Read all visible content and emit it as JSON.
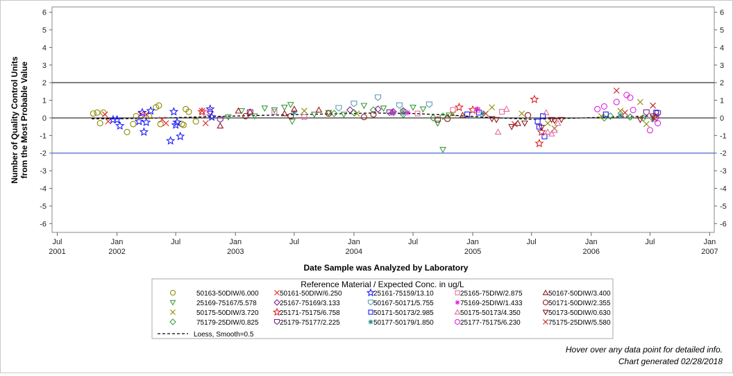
{
  "chart_data": {
    "type": "scatter",
    "ylabel_line1": "Number of Quality Control Units",
    "ylabel_line2": "from the Most Probable Value",
    "xlabel": "Date Sample was Analyzed by Laboratory",
    "ylim": [
      -6.5,
      6.3
    ],
    "yticks": [
      6,
      5,
      4,
      3,
      2,
      1,
      0,
      -1,
      -2,
      -3,
      -4,
      -5,
      -6
    ],
    "xlim": [
      "2001-06-15",
      "2007-01-15"
    ],
    "xticks": [
      {
        "date": "2001-07-01",
        "line1": "Jul",
        "line2": "2001"
      },
      {
        "date": "2002-01-01",
        "line1": "Jan",
        "line2": "2002"
      },
      {
        "date": "2002-07-01",
        "line1": "Jul",
        "line2": ""
      },
      {
        "date": "2003-01-01",
        "line1": "Jan",
        "line2": "2003"
      },
      {
        "date": "2003-07-01",
        "line1": "Jul",
        "line2": ""
      },
      {
        "date": "2004-01-01",
        "line1": "Jan",
        "line2": "2004"
      },
      {
        "date": "2004-07-01",
        "line1": "Jul",
        "line2": ""
      },
      {
        "date": "2005-01-01",
        "line1": "Jan",
        "line2": "2005"
      },
      {
        "date": "2005-07-01",
        "line1": "Jul",
        "line2": ""
      },
      {
        "date": "2006-01-01",
        "line1": "Jan",
        "line2": "2006"
      },
      {
        "date": "2006-07-01",
        "line1": "Jul",
        "line2": ""
      },
      {
        "date": "2007-01-01",
        "line1": "Jan",
        "line2": "2007"
      }
    ],
    "reference_lines": [
      {
        "y": 2,
        "color": "#000000"
      },
      {
        "y": 0,
        "color": "#000000"
      },
      {
        "y": -2,
        "color": "#2040c0"
      }
    ],
    "legend_title": "Reference Material / Expected Conc. in ug/L",
    "loess_label": "Loess, Smooth=0.5",
    "loess": [
      {
        "x": "2001-10-15",
        "y": -0.05
      },
      {
        "x": "2002-01-01",
        "y": -0.05
      },
      {
        "x": "2002-06-01",
        "y": 0.0
      },
      {
        "x": "2002-11-01",
        "y": 0.08
      },
      {
        "x": "2003-04-01",
        "y": 0.15
      },
      {
        "x": "2003-10-01",
        "y": 0.22
      },
      {
        "x": "2004-03-01",
        "y": 0.28
      },
      {
        "x": "2004-07-01",
        "y": 0.25
      },
      {
        "x": "2004-11-01",
        "y": 0.15
      },
      {
        "x": "2005-03-01",
        "y": 0.02
      },
      {
        "x": "2005-07-01",
        "y": -0.08
      },
      {
        "x": "2005-11-01",
        "y": -0.02
      },
      {
        "x": "2006-03-01",
        "y": 0.05
      },
      {
        "x": "2006-08-01",
        "y": 0.12
      }
    ],
    "series": [
      {
        "name": "50163-50DIW/6.000",
        "color": "#8b8b00",
        "marker": "circle",
        "points": [
          [
            "2001-10-20",
            0.25
          ],
          [
            "2001-11-01",
            0.3
          ],
          [
            "2001-11-10",
            -0.3
          ],
          [
            "2001-11-20",
            0.3
          ],
          [
            "2002-02-01",
            -0.8
          ],
          [
            "2002-02-20",
            -0.35
          ],
          [
            "2002-03-01",
            0.1
          ],
          [
            "2002-04-10",
            0.1
          ],
          [
            "2002-05-01",
            0.6
          ],
          [
            "2002-05-10",
            0.7
          ],
          [
            "2002-05-15",
            -0.35
          ],
          [
            "2002-07-20",
            -0.35
          ],
          [
            "2002-07-25",
            -0.4
          ],
          [
            "2002-08-01",
            0.5
          ],
          [
            "2002-08-10",
            0.35
          ],
          [
            "2002-09-01",
            -0.2
          ]
        ]
      },
      {
        "name": "25169-75167/5.578",
        "color": "#3a9a3a",
        "marker": "tri-down",
        "points": [
          [
            "2002-12-10",
            0.05
          ],
          [
            "2003-01-20",
            0.4
          ],
          [
            "2003-03-01",
            0.1
          ],
          [
            "2003-04-01",
            0.55
          ],
          [
            "2003-05-01",
            0.45
          ],
          [
            "2003-06-01",
            0.6
          ],
          [
            "2003-06-20",
            0.75
          ],
          [
            "2003-06-25",
            -0.2
          ],
          [
            "2003-09-01",
            0.2
          ],
          [
            "2003-10-15",
            0.3
          ],
          [
            "2003-12-01",
            0.2
          ],
          [
            "2004-02-01",
            0.7
          ],
          [
            "2004-04-01",
            0.55
          ],
          [
            "2004-07-01",
            0.6
          ],
          [
            "2004-08-01",
            0.5
          ],
          [
            "2004-09-15",
            -0.3
          ],
          [
            "2004-10-01",
            -1.8
          ],
          [
            "2004-10-20",
            0.15
          ]
        ]
      },
      {
        "name": "50175-50DIW/3.720",
        "color": "#8b8b00",
        "marker": "x",
        "points": [
          [
            "2003-08-01",
            0.4
          ],
          [
            "2004-01-10",
            0.25
          ],
          [
            "2004-06-01",
            0.35
          ],
          [
            "2004-11-01",
            0.25
          ],
          [
            "2005-03-01",
            0.6
          ],
          [
            "2005-06-01",
            0.25
          ],
          [
            "2005-08-20",
            -0.3
          ],
          [
            "2005-09-10",
            -0.6
          ],
          [
            "2006-02-01",
            0.1
          ],
          [
            "2006-04-01",
            0.4
          ],
          [
            "2006-06-01",
            0.9
          ],
          [
            "2006-06-20",
            -0.35
          ],
          [
            "2006-07-20",
            0.15
          ]
        ]
      },
      {
        "name": "75179-25DIW/0.825",
        "color": "#3a9a3a",
        "marker": "diamond",
        "points": [
          [
            "2003-11-01",
            0.25
          ],
          [
            "2004-01-01",
            0.3
          ],
          [
            "2004-03-01",
            0.45
          ],
          [
            "2004-06-01",
            0.2
          ],
          [
            "2004-09-01",
            0.0
          ],
          [
            "2004-10-01",
            0.1
          ],
          [
            "2006-02-10",
            0.0
          ],
          [
            "2006-03-01",
            0.1
          ],
          [
            "2006-05-01",
            0.05
          ],
          [
            "2006-06-10",
            0.0
          ]
        ]
      },
      {
        "name": "50161-50DIW/6.250",
        "color": "#e02020",
        "marker": "x",
        "points": [
          [
            "2001-11-25",
            0.2
          ],
          [
            "2001-12-05",
            -0.2
          ],
          [
            "2002-03-15",
            0.2
          ],
          [
            "2002-04-01",
            0.2
          ],
          [
            "2002-05-20",
            -0.1
          ],
          [
            "2002-06-01",
            -0.3
          ],
          [
            "2002-09-20",
            0.4
          ],
          [
            "2002-10-01",
            -0.3
          ]
        ]
      },
      {
        "name": "25167-75169/3.133",
        "color": "#7a1f8a",
        "marker": "diamond",
        "points": [
          [
            "2002-10-15",
            0.35
          ],
          [
            "2003-12-20",
            0.45
          ],
          [
            "2004-03-15",
            0.5
          ],
          [
            "2004-05-01",
            0.35
          ],
          [
            "2004-06-01",
            0.4
          ]
        ]
      },
      {
        "name": "25171-75175/6.758",
        "color": "#e02020",
        "marker": "star",
        "points": [
          [
            "2002-09-20",
            0.35
          ],
          [
            "2004-11-20",
            0.6
          ],
          [
            "2005-01-01",
            0.45
          ],
          [
            "2005-07-10",
            1.05
          ],
          [
            "2005-07-25",
            -1.45
          ],
          [
            "2005-08-01",
            -0.8
          ]
        ]
      },
      {
        "name": "25179-75177/2.225",
        "color": "#7a1f8a",
        "marker": "shield",
        "points": [
          [
            "2002-11-15",
            -0.1
          ],
          [
            "2003-02-15",
            0.3
          ],
          [
            "2004-04-20",
            0.3
          ],
          [
            "2006-06-20",
            0.3
          ],
          [
            "2006-07-25",
            0.25
          ]
        ]
      },
      {
        "name": "25161-75159/13.10",
        "color": "#1a1aff",
        "marker": "star",
        "points": [
          [
            "2001-12-20",
            -0.1
          ],
          [
            "2002-01-01",
            -0.1
          ],
          [
            "2002-01-10",
            -0.45
          ],
          [
            "2002-03-10",
            -0.2
          ],
          [
            "2002-03-20",
            0.3
          ],
          [
            "2002-03-25",
            -0.8
          ],
          [
            "2002-04-01",
            -0.25
          ],
          [
            "2002-04-15",
            0.4
          ],
          [
            "2002-06-15",
            -1.3
          ],
          [
            "2002-06-25",
            0.35
          ],
          [
            "2002-07-01",
            -0.4
          ],
          [
            "2002-07-05",
            -0.25
          ],
          [
            "2002-07-15",
            -1.05
          ],
          [
            "2002-10-15",
            0.5
          ],
          [
            "2002-10-20",
            0.05
          ]
        ]
      },
      {
        "name": "50167-50171/5.755",
        "color": "#5a9ab8",
        "marker": "shield",
        "points": [
          [
            "2003-11-15",
            0.55
          ],
          [
            "2004-01-01",
            0.8
          ],
          [
            "2004-03-15",
            1.15
          ],
          [
            "2004-05-20",
            0.7
          ],
          [
            "2004-06-01",
            0.3
          ],
          [
            "2004-08-20",
            0.75
          ]
        ]
      },
      {
        "name": "50171-50173/2.985",
        "color": "#1a1aff",
        "marker": "square",
        "points": [
          [
            "2004-12-15",
            0.2
          ],
          [
            "2005-01-20",
            0.3
          ],
          [
            "2005-07-20",
            -0.2
          ],
          [
            "2005-07-25",
            -0.5
          ],
          [
            "2005-08-05",
            0.1
          ],
          [
            "2005-08-10",
            -1.05
          ],
          [
            "2006-02-15",
            0.2
          ],
          [
            "2006-07-20",
            0.3
          ]
        ]
      },
      {
        "name": "50177-50179/1.850",
        "color": "#2a8a8a",
        "marker": "asterisk",
        "points": [
          [
            "2003-07-01",
            0.3
          ],
          [
            "2004-05-01",
            0.25
          ],
          [
            "2005-02-01",
            0.25
          ],
          [
            "2006-04-01",
            0.15
          ],
          [
            "2006-07-10",
            -0.1
          ]
        ]
      },
      {
        "name": "25165-75DIW/2.875",
        "color": "#e070a0",
        "marker": "square",
        "points": [
          [
            "2002-10-01",
            0.3
          ],
          [
            "2003-05-01",
            0.35
          ],
          [
            "2003-08-01",
            0.05
          ],
          [
            "2004-07-15",
            0.25
          ],
          [
            "2004-11-01",
            0.45
          ],
          [
            "2005-01-15",
            0.45
          ],
          [
            "2005-04-01",
            0.35
          ]
        ]
      },
      {
        "name": "75169-25DIW/1.433",
        "color": "#e020e0",
        "marker": "asterisk",
        "points": [
          [
            "2004-05-01",
            0.3
          ],
          [
            "2004-06-15",
            0.3
          ],
          [
            "2005-01-15",
            0.5
          ]
        ]
      },
      {
        "name": "50175-50173/4.350",
        "color": "#e070a0",
        "marker": "triangle",
        "points": [
          [
            "2005-03-20",
            -0.8
          ],
          [
            "2005-04-15",
            0.5
          ],
          [
            "2005-08-15",
            0.3
          ],
          [
            "2005-08-20",
            -0.8
          ],
          [
            "2005-09-01",
            -0.9
          ],
          [
            "2005-09-10",
            -0.7
          ],
          [
            "2005-09-20",
            -0.3
          ]
        ]
      },
      {
        "name": "25177-75175/6.230",
        "color": "#e020e0",
        "marker": "circle",
        "points": [
          [
            "2006-01-20",
            0.5
          ],
          [
            "2006-02-10",
            0.65
          ],
          [
            "2006-03-20",
            0.9
          ],
          [
            "2006-04-20",
            1.3
          ],
          [
            "2006-05-01",
            1.15
          ],
          [
            "2006-05-10",
            0.45
          ],
          [
            "2006-07-01",
            -0.7
          ],
          [
            "2006-07-20",
            0.05
          ],
          [
            "2006-07-25",
            -0.3
          ]
        ]
      },
      {
        "name": "50167-50DIW/3.400",
        "color": "#8b1a1a",
        "marker": "triangle",
        "points": [
          [
            "2002-11-15",
            -0.45
          ],
          [
            "2003-01-10",
            0.4
          ],
          [
            "2003-02-15",
            0.35
          ],
          [
            "2003-06-01",
            0.25
          ],
          [
            "2003-07-01",
            0.5
          ],
          [
            "2003-09-15",
            0.45
          ],
          [
            "2004-12-01",
            0.15
          ],
          [
            "2005-05-20",
            -0.3
          ]
        ]
      },
      {
        "name": "50171-50DIW/2.355",
        "color": "#8b1a1a",
        "marker": "circle",
        "points": [
          [
            "2003-02-01",
            0.1
          ],
          [
            "2003-06-20",
            0.1
          ],
          [
            "2003-10-15",
            0.25
          ],
          [
            "2004-02-01",
            0.05
          ],
          [
            "2004-03-01",
            0.2
          ],
          [
            "2004-09-15",
            -0.1
          ],
          [
            "2004-10-15",
            -0.05
          ],
          [
            "2005-06-20",
            0.15
          ]
        ]
      },
      {
        "name": "50173-50DIW/0.630",
        "color": "#8b1a1a",
        "marker": "tri-down",
        "points": [
          [
            "2005-03-01",
            -0.05
          ],
          [
            "2005-03-15",
            -0.1
          ],
          [
            "2005-05-01",
            -0.5
          ],
          [
            "2005-06-10",
            -0.3
          ],
          [
            "2005-08-01",
            -0.55
          ],
          [
            "2005-09-01",
            -0.1
          ],
          [
            "2005-09-10",
            -0.15
          ],
          [
            "2005-10-01",
            -0.1
          ],
          [
            "2006-06-01",
            -0.1
          ],
          [
            "2006-07-10",
            0.1
          ]
        ]
      },
      {
        "name": "75175-25DIW/5.580",
        "color": "#c02020",
        "marker": "x",
        "points": [
          [
            "2005-02-10",
            0.25
          ],
          [
            "2005-05-10",
            -0.35
          ],
          [
            "2006-03-20",
            1.55
          ],
          [
            "2006-04-15",
            0.3
          ],
          [
            "2006-07-10",
            0.7
          ],
          [
            "2006-07-15",
            -0.05
          ]
        ]
      }
    ]
  },
  "footer": {
    "line1": "Hover over any data point for detailed info.",
    "line2": "Chart generated 02/28/2018"
  }
}
